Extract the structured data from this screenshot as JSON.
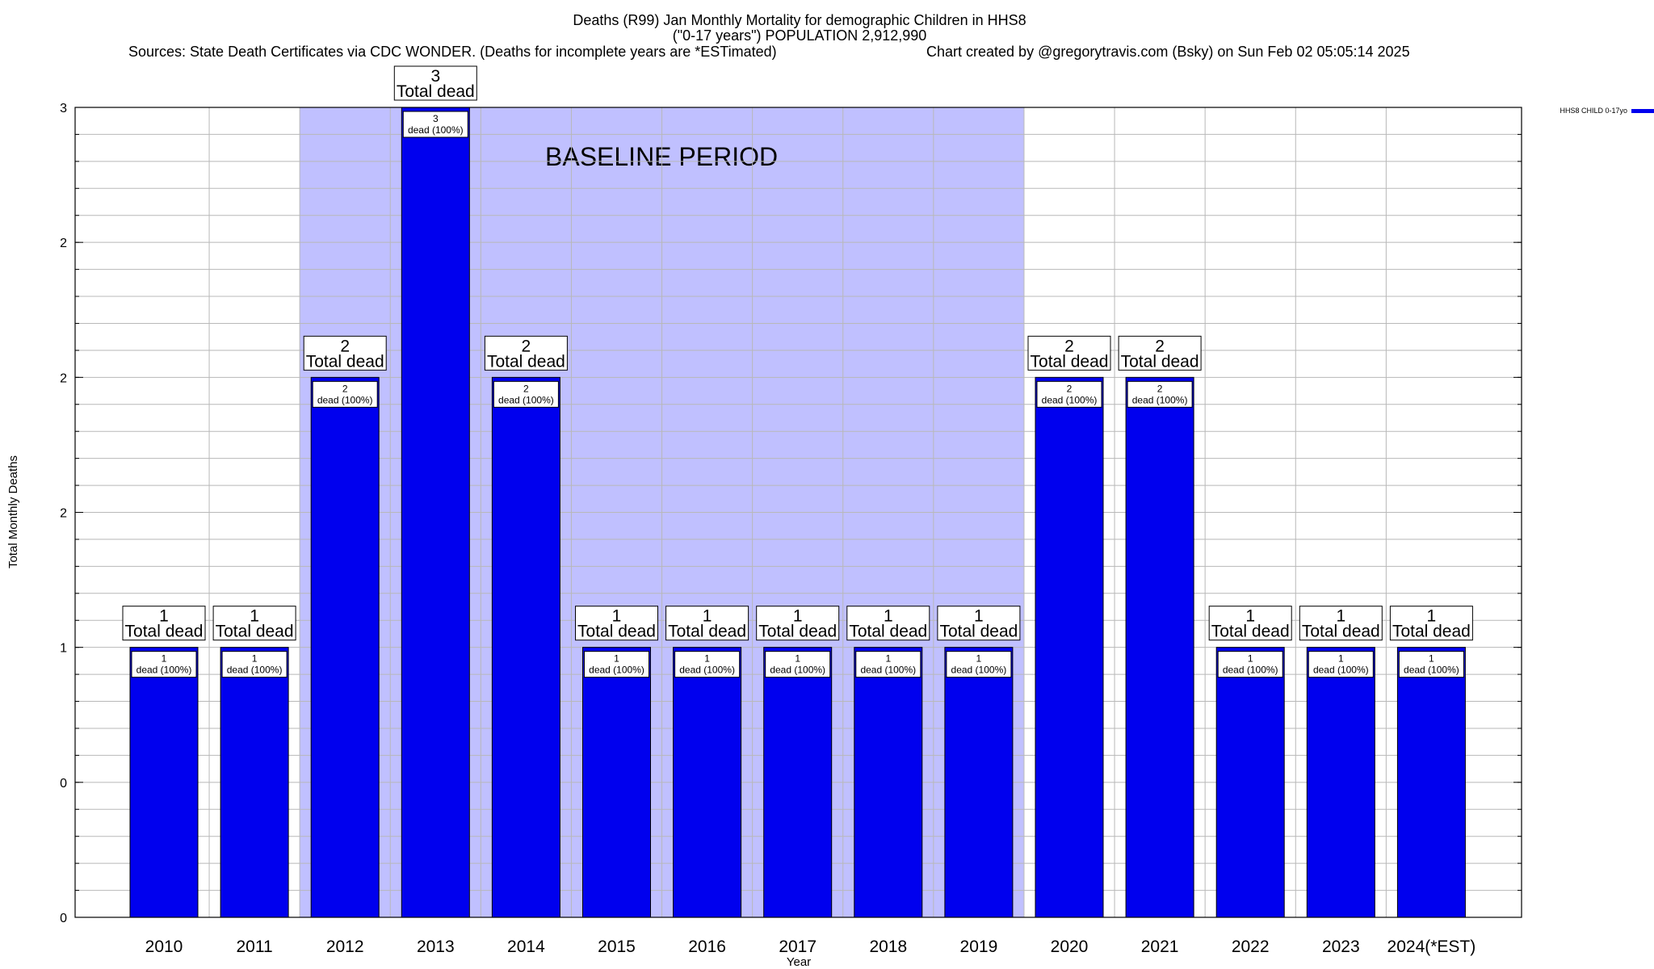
{
  "chart_data": {
    "type": "bar",
    "title_lines": [
      "Deaths (R99) Jan Monthly Mortality for demographic Children in HHS8",
      "(\"0-17 years\") POPULATION 2,912,990",
      "Sources: State Death Certificates via CDC WONDER. (Deaths for incomplete years are *ESTimated)",
      "Chart created by @gregorytravis.com (Bsky) on Sun Feb 02 05:05:14 2025"
    ],
    "xlabel": "Year",
    "ylabel": "Total Monthly Deaths",
    "ylim": [
      0,
      3
    ],
    "y_tick_values": [
      0,
      0.5,
      1,
      1.5,
      2,
      2.5,
      3
    ],
    "y_tick_labels": [
      "0",
      "0",
      "1",
      "2",
      "2",
      "2",
      "3"
    ],
    "grid": true,
    "categories": [
      "2010",
      "2011",
      "2012",
      "2013",
      "2014",
      "2015",
      "2016",
      "2017",
      "2018",
      "2019",
      "2020",
      "2021",
      "2022",
      "2023",
      "2024(*EST)"
    ],
    "series": [
      {
        "name": "HHS8 CHILD 0-17yo",
        "color": "#0000ee",
        "values": [
          1,
          1,
          2,
          3,
          2,
          1,
          1,
          1,
          1,
          1,
          2,
          2,
          1,
          1,
          1
        ]
      }
    ],
    "top_labels": {
      "values": [
        "1",
        "1",
        "2",
        "3",
        "2",
        "1",
        "1",
        "1",
        "1",
        "1",
        "2",
        "2",
        "1",
        "1",
        "1"
      ],
      "text": "Total dead"
    },
    "inner_labels": {
      "values": [
        "1",
        "1",
        "2",
        "3",
        "2",
        "1",
        "1",
        "1",
        "1",
        "1",
        "2",
        "2",
        "1",
        "1",
        "1"
      ],
      "text": "dead (100%)"
    },
    "baseline_period": {
      "label": "BASELINE PERIOD",
      "start": "2012",
      "end": "2019",
      "color": "#c0c0ff"
    },
    "legend_position": "top-right"
  }
}
